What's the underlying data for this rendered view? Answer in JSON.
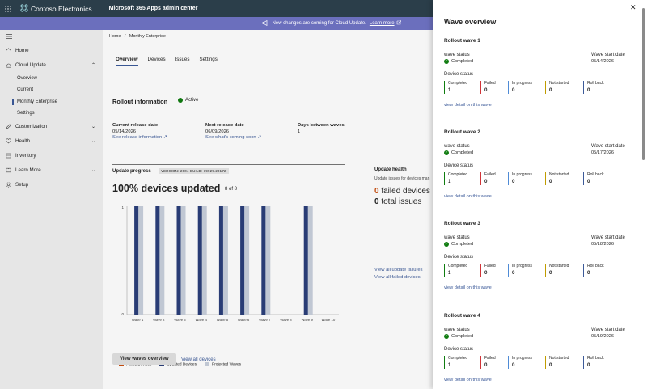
{
  "topbar": {
    "brand": "Contoso Electronics",
    "app_title": "Microsoft 365 Apps admin center"
  },
  "banner": {
    "message": "New changes are coming for Cloud Update.",
    "link": "Learn more"
  },
  "sidebar": {
    "items": [
      {
        "label": "Home",
        "icon": "home-icon"
      },
      {
        "label": "Cloud Update",
        "icon": "cloud-icon"
      },
      {
        "label": "Customization",
        "icon": "pencil-icon"
      },
      {
        "label": "Health",
        "icon": "heart-icon"
      },
      {
        "label": "Inventory",
        "icon": "inventory-icon"
      },
      {
        "label": "Learn More",
        "icon": "book-icon"
      },
      {
        "label": "Setup",
        "icon": "gear-icon"
      }
    ],
    "subitems": [
      "Overview",
      "Current",
      "Monthly Enterprise",
      "Settings"
    ]
  },
  "breadcrumb": {
    "home": "Home",
    "sep": "/",
    "current": "Monthly Enterprise"
  },
  "tabs": [
    "Overview",
    "Devices",
    "Issues",
    "Settings"
  ],
  "rollout": {
    "title": "Rollout information",
    "status": "Active",
    "current_release_label": "Current release date",
    "current_release": "05/14/2026",
    "current_release_link": "See release information",
    "next_release_label": "Next release date",
    "next_release": "06/09/2026",
    "next_release_link": "See what's coming soon",
    "days_label": "Days between waves",
    "days": "1"
  },
  "progress": {
    "title": "Update progress",
    "version": "VERSION: 2604 BUILD: 19929.20172",
    "headline": "100% devices updated",
    "count": "8 of 8",
    "view_button": "View waves overview",
    "view_all": "View all devices"
  },
  "chart_data": {
    "type": "bar",
    "categories": [
      "Wave 1",
      "Wave 2",
      "Wave 3",
      "Wave 4",
      "Wave 5",
      "Wave 6",
      "Wave 7",
      "Wave 8",
      "Wave 9",
      "Wave 10"
    ],
    "series": [
      {
        "name": "Failed Devices",
        "values": [
          0,
          0,
          0,
          0,
          0,
          0,
          0,
          0,
          0,
          0
        ],
        "color": "#ca5010"
      },
      {
        "name": "Updated Devices",
        "values": [
          1,
          1,
          1,
          1,
          1,
          1,
          1,
          0,
          1,
          0
        ],
        "color": "#2b3f7a"
      },
      {
        "name": "Projected Waves",
        "values": [
          1,
          1,
          1,
          1,
          1,
          1,
          1,
          0,
          1,
          0
        ],
        "color": "#c8d0dc"
      }
    ],
    "ylim": [
      0,
      1
    ],
    "yticks": [
      "1",
      "0"
    ]
  },
  "health": {
    "title": "Update health",
    "subtitle": "Update issues for devices man",
    "failed_count": "0",
    "failed_label": "failed devices",
    "total_count": "0",
    "total_label": "total issues",
    "link_failures": "View all update failures",
    "link_failed": "View all failed devices"
  },
  "panel": {
    "title": "Wave overview",
    "status_label": "wave status",
    "date_label": "Wave start date",
    "device_label": "Device status",
    "detail_link": "view detail on this wave",
    "stat_labels": [
      "Completed",
      "Failed",
      "In progress",
      "Not started",
      "Roll back"
    ],
    "stat_colors": [
      "#107c10",
      "#d13438",
      "#4f8bd6",
      "#c19c00",
      "#3c5a99"
    ],
    "waves": [
      {
        "title": "Rollout wave 1",
        "status": "Completed",
        "date": "05/14/2026",
        "stats": [
          "1",
          "0",
          "0",
          "0",
          "0"
        ]
      },
      {
        "title": "Rollout wave 2",
        "status": "Completed",
        "date": "05/17/2026",
        "stats": [
          "1",
          "0",
          "0",
          "0",
          "0"
        ]
      },
      {
        "title": "Rollout wave 3",
        "status": "Completed",
        "date": "05/18/2026",
        "stats": [
          "1",
          "0",
          "0",
          "0",
          "0"
        ]
      },
      {
        "title": "Rollout wave 4",
        "status": "Completed",
        "date": "05/19/2026",
        "stats": [
          "1",
          "0",
          "0",
          "0",
          "0"
        ]
      }
    ]
  }
}
